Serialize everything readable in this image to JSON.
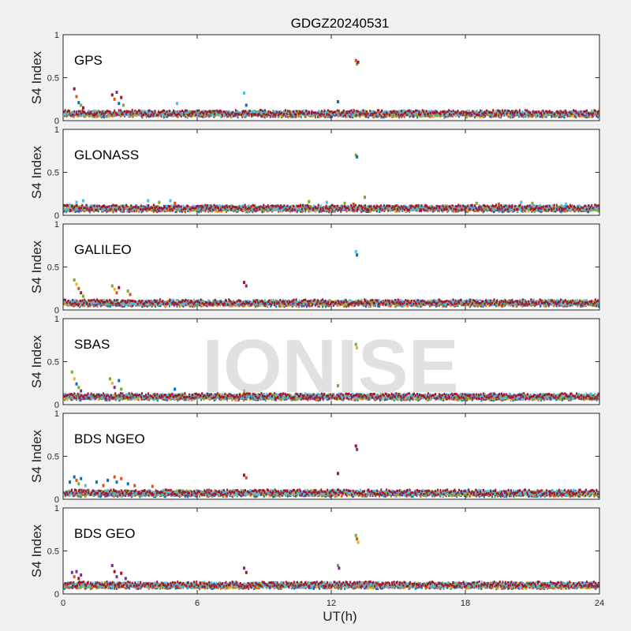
{
  "chart_data": {
    "type": "scatter",
    "title": "GDGZ20240531",
    "xlabel": "UT(h)",
    "ylabel": "S4 Index",
    "xlim": [
      0,
      24
    ],
    "ylim": [
      0,
      1
    ],
    "xticks": [
      0,
      6,
      12,
      18,
      24
    ],
    "xtick_labels": [
      "0",
      "6",
      "12",
      "18",
      "24"
    ],
    "yticks": [
      0,
      0.5,
      1
    ],
    "ytick_labels": [
      "0",
      "0.5",
      "1"
    ],
    "grid": false,
    "legend": "none",
    "watermark": "IONISE",
    "series_colors": [
      "#0072BD",
      "#D95319",
      "#EDB120",
      "#7E2F8E",
      "#77AC30",
      "#4DBEEE",
      "#A2142F"
    ],
    "panels": [
      {
        "label": "GPS",
        "baseline": 0.08,
        "points": [
          {
            "x": 0.5,
            "y": 0.37,
            "c": 6
          },
          {
            "x": 0.6,
            "y": 0.28,
            "c": 1
          },
          {
            "x": 0.7,
            "y": 0.21,
            "c": 0
          },
          {
            "x": 0.8,
            "y": 0.18,
            "c": 4
          },
          {
            "x": 0.9,
            "y": 0.15,
            "c": 6
          },
          {
            "x": 2.2,
            "y": 0.3,
            "c": 6
          },
          {
            "x": 2.3,
            "y": 0.25,
            "c": 1
          },
          {
            "x": 2.4,
            "y": 0.33,
            "c": 3
          },
          {
            "x": 2.5,
            "y": 0.2,
            "c": 0
          },
          {
            "x": 2.6,
            "y": 0.27,
            "c": 6
          },
          {
            "x": 2.7,
            "y": 0.18,
            "c": 4
          },
          {
            "x": 5.1,
            "y": 0.2,
            "c": 5
          },
          {
            "x": 8.1,
            "y": 0.32,
            "c": 5
          },
          {
            "x": 8.2,
            "y": 0.18,
            "c": 0
          },
          {
            "x": 12.3,
            "y": 0.22,
            "c": 0
          },
          {
            "x": 13.1,
            "y": 0.7,
            "c": 1
          },
          {
            "x": 13.15,
            "y": 0.66,
            "c": 4
          },
          {
            "x": 13.2,
            "y": 0.68,
            "c": 6
          }
        ]
      },
      {
        "label": "GLONASS",
        "baseline": 0.08,
        "points": [
          {
            "x": 0.3,
            "y": 0.12,
            "c": 5
          },
          {
            "x": 0.6,
            "y": 0.15,
            "c": 5
          },
          {
            "x": 0.9,
            "y": 0.17,
            "c": 5
          },
          {
            "x": 3.8,
            "y": 0.17,
            "c": 5
          },
          {
            "x": 4.3,
            "y": 0.15,
            "c": 4
          },
          {
            "x": 4.8,
            "y": 0.17,
            "c": 5
          },
          {
            "x": 5.0,
            "y": 0.14,
            "c": 1
          },
          {
            "x": 11.0,
            "y": 0.16,
            "c": 4
          },
          {
            "x": 11.8,
            "y": 0.15,
            "c": 5
          },
          {
            "x": 12.6,
            "y": 0.14,
            "c": 4
          },
          {
            "x": 13.0,
            "y": 0.13,
            "c": 1
          },
          {
            "x": 13.1,
            "y": 0.7,
            "c": 4
          },
          {
            "x": 13.15,
            "y": 0.68,
            "c": 0
          },
          {
            "x": 13.5,
            "y": 0.21,
            "c": 4
          },
          {
            "x": 18.5,
            "y": 0.14,
            "c": 4
          },
          {
            "x": 19.5,
            "y": 0.13,
            "c": 1
          },
          {
            "x": 20.5,
            "y": 0.15,
            "c": 5
          },
          {
            "x": 21.0,
            "y": 0.14,
            "c": 4
          },
          {
            "x": 22.5,
            "y": 0.13,
            "c": 5
          }
        ]
      },
      {
        "label": "GALILEO",
        "baseline": 0.08,
        "points": [
          {
            "x": 0.5,
            "y": 0.35,
            "c": 4
          },
          {
            "x": 0.6,
            "y": 0.3,
            "c": 2
          },
          {
            "x": 0.7,
            "y": 0.25,
            "c": 1
          },
          {
            "x": 0.8,
            "y": 0.2,
            "c": 6
          },
          {
            "x": 0.9,
            "y": 0.16,
            "c": 4
          },
          {
            "x": 2.2,
            "y": 0.28,
            "c": 4
          },
          {
            "x": 2.3,
            "y": 0.24,
            "c": 2
          },
          {
            "x": 2.4,
            "y": 0.2,
            "c": 1
          },
          {
            "x": 2.5,
            "y": 0.26,
            "c": 6
          },
          {
            "x": 2.9,
            "y": 0.22,
            "c": 4
          },
          {
            "x": 3.0,
            "y": 0.18,
            "c": 1
          },
          {
            "x": 8.1,
            "y": 0.32,
            "c": 6
          },
          {
            "x": 8.2,
            "y": 0.28,
            "c": 3
          },
          {
            "x": 13.1,
            "y": 0.68,
            "c": 5
          },
          {
            "x": 13.15,
            "y": 0.64,
            "c": 0
          }
        ]
      },
      {
        "label": "SBAS",
        "baseline": 0.09,
        "points": [
          {
            "x": 0.4,
            "y": 0.38,
            "c": 4
          },
          {
            "x": 0.5,
            "y": 0.3,
            "c": 2
          },
          {
            "x": 0.6,
            "y": 0.24,
            "c": 0
          },
          {
            "x": 0.7,
            "y": 0.2,
            "c": 4
          },
          {
            "x": 0.8,
            "y": 0.16,
            "c": 3
          },
          {
            "x": 2.1,
            "y": 0.3,
            "c": 4
          },
          {
            "x": 2.2,
            "y": 0.25,
            "c": 2
          },
          {
            "x": 2.3,
            "y": 0.2,
            "c": 3
          },
          {
            "x": 2.5,
            "y": 0.28,
            "c": 0
          },
          {
            "x": 2.6,
            "y": 0.18,
            "c": 4
          },
          {
            "x": 5.0,
            "y": 0.18,
            "c": 0
          },
          {
            "x": 8.1,
            "y": 0.16,
            "c": 4
          },
          {
            "x": 12.3,
            "y": 0.22,
            "c": 4
          },
          {
            "x": 13.1,
            "y": 0.7,
            "c": 4
          },
          {
            "x": 13.15,
            "y": 0.66,
            "c": 2
          }
        ]
      },
      {
        "label": "BDS NGEO",
        "baseline": 0.07,
        "points": [
          {
            "x": 0.3,
            "y": 0.2,
            "c": 0
          },
          {
            "x": 0.5,
            "y": 0.26,
            "c": 0
          },
          {
            "x": 0.6,
            "y": 0.22,
            "c": 1
          },
          {
            "x": 0.7,
            "y": 0.18,
            "c": 4
          },
          {
            "x": 0.8,
            "y": 0.24,
            "c": 0
          },
          {
            "x": 1.0,
            "y": 0.16,
            "c": 5
          },
          {
            "x": 1.5,
            "y": 0.2,
            "c": 0
          },
          {
            "x": 1.8,
            "y": 0.16,
            "c": 1
          },
          {
            "x": 2.0,
            "y": 0.22,
            "c": 0
          },
          {
            "x": 2.3,
            "y": 0.26,
            "c": 1
          },
          {
            "x": 2.4,
            "y": 0.2,
            "c": 0
          },
          {
            "x": 2.6,
            "y": 0.24,
            "c": 1
          },
          {
            "x": 2.9,
            "y": 0.18,
            "c": 0
          },
          {
            "x": 3.2,
            "y": 0.16,
            "c": 1
          },
          {
            "x": 4.0,
            "y": 0.15,
            "c": 1
          },
          {
            "x": 8.1,
            "y": 0.28,
            "c": 6
          },
          {
            "x": 8.2,
            "y": 0.25,
            "c": 1
          },
          {
            "x": 12.3,
            "y": 0.3,
            "c": 6
          },
          {
            "x": 13.1,
            "y": 0.62,
            "c": 6
          },
          {
            "x": 13.15,
            "y": 0.58,
            "c": 3
          }
        ]
      },
      {
        "label": "BDS GEO",
        "baseline": 0.1,
        "points": [
          {
            "x": 0.4,
            "y": 0.25,
            "c": 3
          },
          {
            "x": 0.5,
            "y": 0.2,
            "c": 1
          },
          {
            "x": 0.6,
            "y": 0.26,
            "c": 3
          },
          {
            "x": 0.7,
            "y": 0.18,
            "c": 6
          },
          {
            "x": 0.8,
            "y": 0.22,
            "c": 3
          },
          {
            "x": 2.2,
            "y": 0.33,
            "c": 3
          },
          {
            "x": 2.3,
            "y": 0.26,
            "c": 6
          },
          {
            "x": 2.4,
            "y": 0.2,
            "c": 3
          },
          {
            "x": 2.6,
            "y": 0.24,
            "c": 6
          },
          {
            "x": 2.8,
            "y": 0.18,
            "c": 3
          },
          {
            "x": 8.1,
            "y": 0.3,
            "c": 3
          },
          {
            "x": 8.2,
            "y": 0.25,
            "c": 6
          },
          {
            "x": 12.3,
            "y": 0.33,
            "c": 4
          },
          {
            "x": 12.35,
            "y": 0.3,
            "c": 3
          },
          {
            "x": 13.1,
            "y": 0.68,
            "c": 4
          },
          {
            "x": 13.15,
            "y": 0.64,
            "c": 1
          },
          {
            "x": 13.2,
            "y": 0.6,
            "c": 2
          }
        ]
      }
    ]
  }
}
